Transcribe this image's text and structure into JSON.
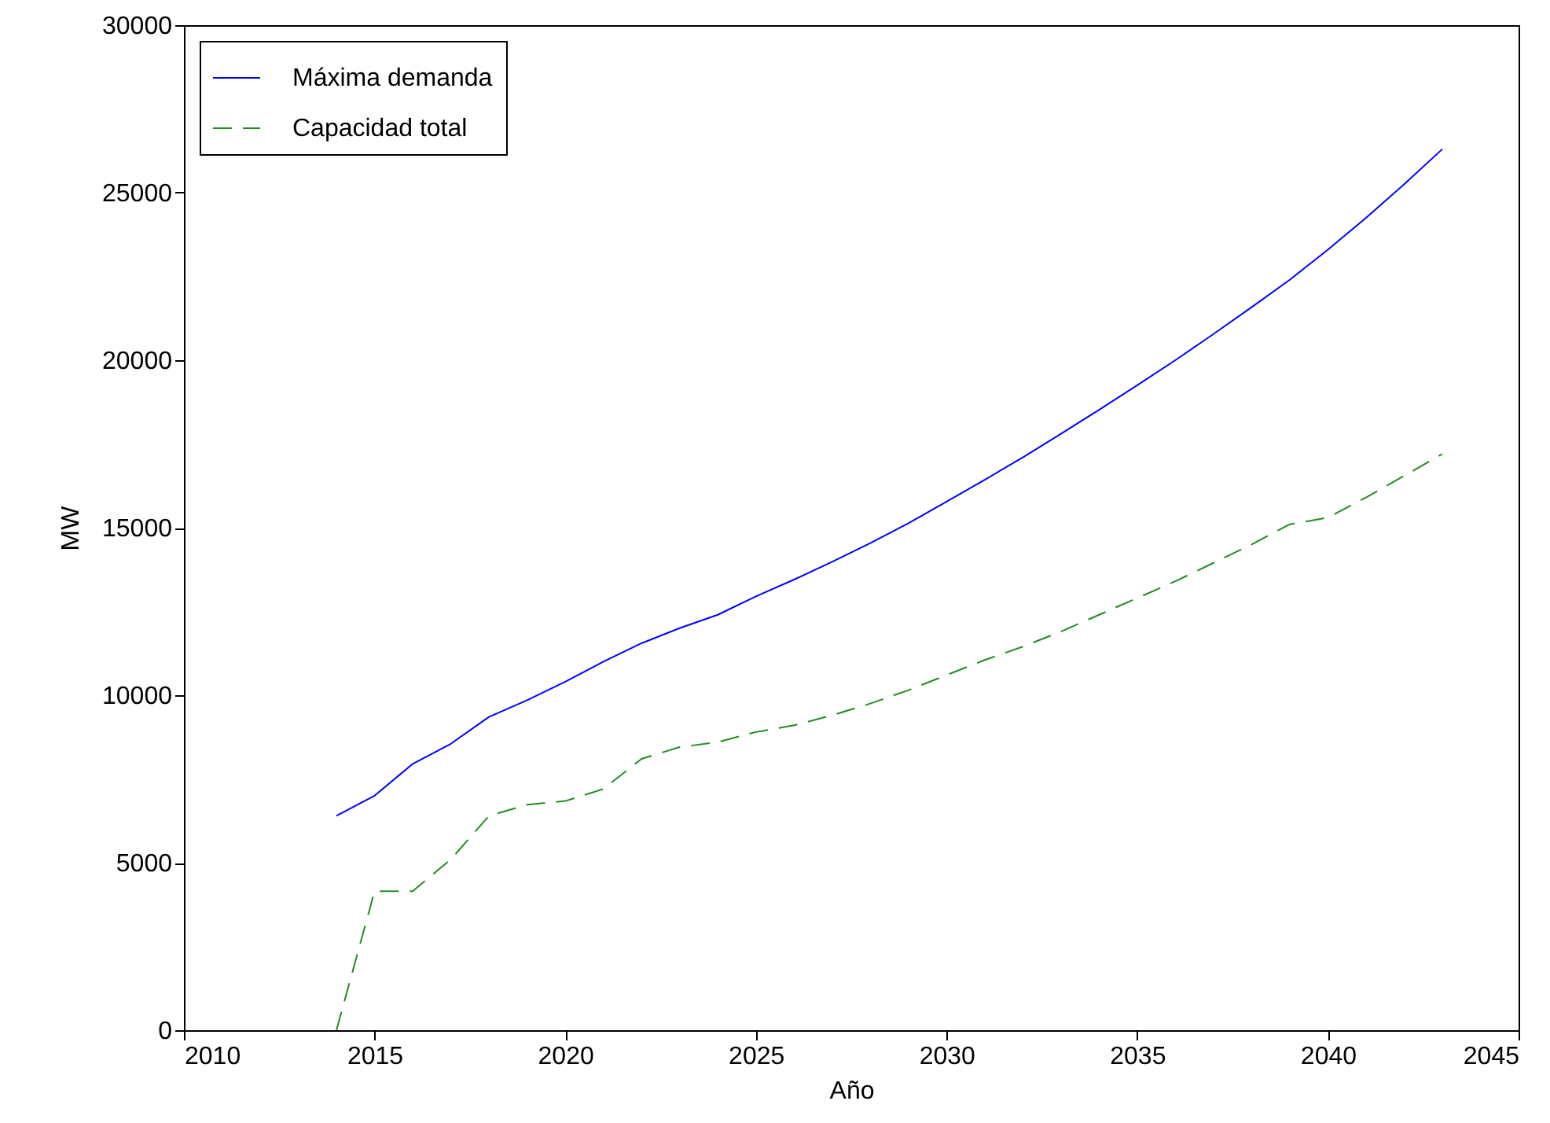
{
  "chart_data": {
    "type": "line",
    "xlabel": "Año",
    "ylabel": "MW",
    "x": [
      2014,
      2015,
      2016,
      2017,
      2018,
      2019,
      2020,
      2021,
      2022,
      2023,
      2024,
      2025,
      2026,
      2027,
      2028,
      2029,
      2030,
      2031,
      2032,
      2033,
      2034,
      2035,
      2036,
      2037,
      2038,
      2039,
      2040,
      2041,
      2042,
      2043
    ],
    "series": [
      {
        "name": "Máxima demanda",
        "color": "#0000ff",
        "line_style": "solid",
        "values": [
          6400,
          7000,
          7950,
          8550,
          9350,
          9850,
          10400,
          11000,
          11550,
          12000,
          12400,
          12950,
          13450,
          13980,
          14540,
          15130,
          15780,
          16430,
          17100,
          17800,
          18520,
          19250,
          20000,
          20780,
          21580,
          22400,
          23300,
          24250,
          25250,
          26300
        ]
      },
      {
        "name": "Capacidad total",
        "color": "#228b22",
        "line_style": "dashed",
        "values": [
          0,
          4150,
          4150,
          5100,
          6400,
          6730,
          6840,
          7200,
          8100,
          8450,
          8600,
          8900,
          9100,
          9400,
          9750,
          10150,
          10600,
          11050,
          11450,
          11900,
          12400,
          12900,
          13400,
          13950,
          14500,
          15100,
          15300,
          15900,
          16550,
          17200
        ]
      }
    ],
    "xlim": [
      2010,
      2045
    ],
    "xticks": [
      2010,
      2015,
      2020,
      2025,
      2030,
      2035,
      2040,
      2045
    ],
    "ylim": [
      0,
      30000
    ],
    "yticks": [
      0,
      5000,
      10000,
      15000,
      20000,
      25000,
      30000
    ],
    "grid": false,
    "legend": "top left",
    "marker": "none"
  }
}
